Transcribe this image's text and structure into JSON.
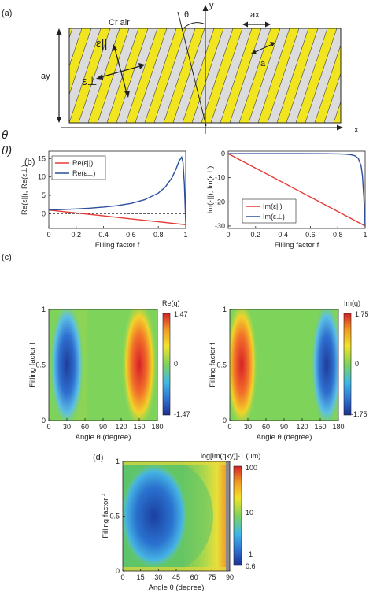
{
  "panel_labels": {
    "a": "(a)",
    "b": "(b)",
    "c": "(c)",
    "d": "(d)"
  },
  "figure_a": {
    "left_label": "Cr air",
    "theta": "θ",
    "y_axis": "y",
    "x_axis": "x",
    "width_label": "ax",
    "height_label": "ay",
    "period_label": "a",
    "eps_par": "ε||",
    "eps_perp": "ε⊥",
    "colors": {
      "stripe": "#f0e51e",
      "gap": "#dcdcdc",
      "border": "#222222"
    }
  },
  "margin_text": {
    "line1": "θ",
    "line2": "θ)"
  },
  "chart_data": [
    {
      "id": "b-left",
      "type": "line",
      "xlabel": "Filling factor f",
      "ylabel": "Re(ε||), Re(ε⊥)",
      "xlim": [
        0,
        1
      ],
      "ylim": [
        -4,
        17
      ],
      "xticks": [
        0,
        0.2,
        0.4,
        0.6,
        0.8,
        1
      ],
      "yticks": [
        0,
        5,
        10,
        15
      ],
      "ytick_labels": [
        "0",
        "5",
        "10",
        "15"
      ],
      "legend": "top-left",
      "series": [
        {
          "name": "Re(ε||)",
          "color": "#e53935",
          "x": [
            0,
            0.2,
            0.4,
            0.6,
            0.8,
            1.0
          ],
          "y": [
            1.0,
            0.2,
            -0.6,
            -1.4,
            -2.2,
            -3.0
          ]
        },
        {
          "name": "Re(ε⊥)",
          "color": "#2b4f9e",
          "x": [
            0,
            0.1,
            0.2,
            0.3,
            0.4,
            0.5,
            0.6,
            0.7,
            0.8,
            0.85,
            0.9,
            0.93,
            0.95,
            0.97,
            0.98,
            0.99,
            1.0
          ],
          "y": [
            1.0,
            1.15,
            1.3,
            1.5,
            1.8,
            2.2,
            2.8,
            3.8,
            5.6,
            7.2,
            9.8,
            12.2,
            14.2,
            15.4,
            14.0,
            8.0,
            -2.5
          ]
        }
      ],
      "dashed_zero": true
    },
    {
      "id": "b-right",
      "type": "line",
      "xlabel": "Filling factor f",
      "ylabel": "Im(ε||), Im(ε⊥)",
      "xlim": [
        0,
        1
      ],
      "ylim": [
        -31,
        1
      ],
      "xticks": [
        0,
        0.2,
        0.4,
        0.6,
        0.8,
        1
      ],
      "yticks": [
        0,
        -10,
        -20,
        -30
      ],
      "ytick_labels": [
        "0",
        "-10",
        "-20",
        "-30"
      ],
      "legend": "bottom-left",
      "series": [
        {
          "name": "Im(ε||)",
          "color": "#e53935",
          "x": [
            0,
            1.0
          ],
          "y": [
            0,
            -30
          ]
        },
        {
          "name": "Im(ε⊥)",
          "color": "#2b4f9e",
          "x": [
            0,
            0.5,
            0.7,
            0.8,
            0.85,
            0.9,
            0.93,
            0.95,
            0.97,
            0.98,
            0.99,
            1.0
          ],
          "y": [
            0,
            -0.02,
            -0.05,
            -0.1,
            -0.2,
            -0.5,
            -1.0,
            -2.0,
            -5.0,
            -9.0,
            -18.0,
            -30.0
          ]
        }
      ]
    },
    {
      "id": "c-left",
      "type": "heatmap",
      "title": "Re(q)",
      "xlabel": "Angle θ (degree)",
      "ylabel": "Filling factor f",
      "xlim": [
        0,
        180
      ],
      "ylim": [
        0,
        1
      ],
      "xticks": [
        0,
        30,
        60,
        90,
        120,
        150,
        180
      ],
      "yticks": [
        0,
        0.5,
        1
      ],
      "colorbar": {
        "labels": [
          "1.47",
          "0",
          "-1.47"
        ]
      },
      "lobes": [
        {
          "theta": 30,
          "value": -1.47
        },
        {
          "theta": 150,
          "value": 1.47
        }
      ]
    },
    {
      "id": "c-right",
      "type": "heatmap",
      "title": "Im(q)",
      "xlabel": "Angle θ (degree)",
      "ylabel": "Filling factor f",
      "xlim": [
        0,
        180
      ],
      "ylim": [
        0,
        1
      ],
      "xticks": [
        0,
        30,
        60,
        90,
        120,
        150,
        180
      ],
      "yticks": [
        0,
        0.5,
        1
      ],
      "colorbar": {
        "labels": [
          "1.75",
          "0",
          "-1.75"
        ]
      },
      "lobes": [
        {
          "theta": 20,
          "value": 1.75
        },
        {
          "theta": 160,
          "value": -1.75
        }
      ]
    },
    {
      "id": "d",
      "type": "heatmap",
      "title": "log[Im(qky)]-1 (μm)",
      "xlabel": "Angle θ (degree)",
      "ylabel": "Filling factor f",
      "xlim": [
        0,
        90
      ],
      "ylim": [
        0,
        1
      ],
      "xticks": [
        0,
        15,
        30,
        45,
        60,
        75,
        90
      ],
      "yticks": [
        0,
        0.5,
        1
      ],
      "colorbar": {
        "labels": [
          "100",
          "10",
          "1",
          "0.6"
        ]
      }
    }
  ]
}
